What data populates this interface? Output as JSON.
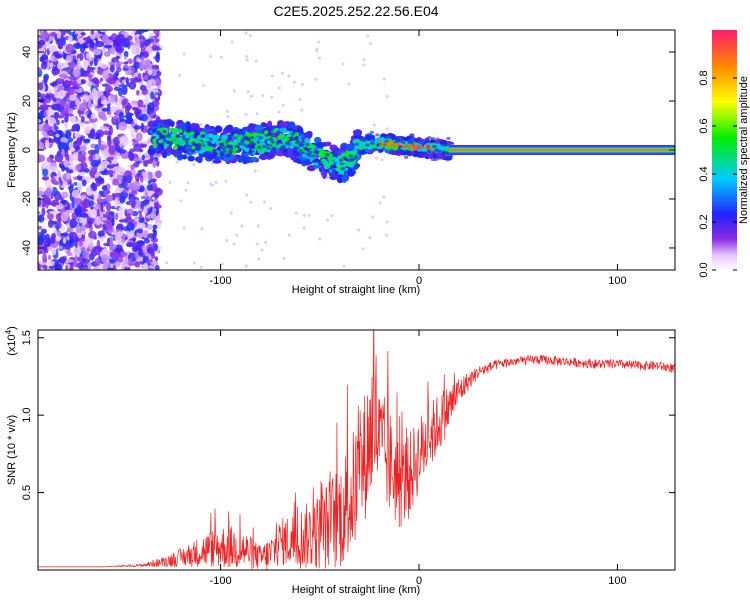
{
  "figure_title": "C2E5.2025.252.22.56.E04",
  "chart_data": [
    {
      "type": "heatmap",
      "title": "C2E5.2025.252.22.56.E04",
      "xlabel": "Height of straight line (km)",
      "ylabel": "Frequency (Hz)",
      "xlim": [
        -192,
        129
      ],
      "ylim": [
        -49,
        49
      ],
      "xticks": [
        -100,
        0,
        100
      ],
      "yticks": [
        40,
        20,
        0,
        -20,
        -40
      ],
      "colorbar": {
        "label": "Normalized spectral amplitude",
        "range": [
          0,
          1
        ],
        "ticks": [
          "0.0",
          "0.2",
          "0.4",
          "0.6",
          "0.8"
        ],
        "tick_values": [
          0,
          0.2,
          0.4,
          0.6,
          0.8
        ]
      },
      "features": {
        "noise_region_x_range": [
          -192,
          -135
        ],
        "signal_track_points": [
          {
            "x": -135,
            "f": 6
          },
          {
            "x": -120,
            "f": 4
          },
          {
            "x": -100,
            "f": 2
          },
          {
            "x": -80,
            "f": 3
          },
          {
            "x": -70,
            "f": 5
          },
          {
            "x": -60,
            "f": 2
          },
          {
            "x": -50,
            "f": -3
          },
          {
            "x": -40,
            "f": -6
          },
          {
            "x": -35,
            "f": -4
          },
          {
            "x": -30,
            "f": 2
          },
          {
            "x": -20,
            "f": 3
          },
          {
            "x": -10,
            "f": 2
          },
          {
            "x": 0,
            "f": 1
          },
          {
            "x": 15,
            "f": 0
          },
          {
            "x": 129,
            "f": 0
          }
        ],
        "carrier_frequency": 0
      }
    },
    {
      "type": "line",
      "title": "",
      "xlabel": "Height of straight line (km)",
      "ylabel": "SNR (10 * v/v)",
      "scale_label": "(x10",
      "scale_exponent": "4",
      "scale_close": ")",
      "xlim": [
        -192,
        129
      ],
      "ylim": [
        0,
        1.55
      ],
      "xticks": [
        -100,
        0,
        100
      ],
      "yticks": [
        0.5,
        1.0,
        1.5
      ],
      "yticklabels": [
        "0.5",
        "1.0",
        "1.5"
      ],
      "color": "#ee2222",
      "series": [
        {
          "name": "SNR",
          "x": [
            -192,
            -160,
            -140,
            -130,
            -120,
            -110,
            -100,
            -90,
            -80,
            -75,
            -70,
            -60,
            -50,
            -45,
            -40,
            -35,
            -30,
            -25,
            -22,
            -20,
            -15,
            -10,
            -5,
            0,
            5,
            10,
            15,
            20,
            25,
            30,
            40,
            50,
            60,
            70,
            80,
            90,
            100,
            110,
            120,
            129
          ],
          "y": [
            0.02,
            0.02,
            0.03,
            0.05,
            0.08,
            0.12,
            0.15,
            0.14,
            0.08,
            0.1,
            0.18,
            0.2,
            0.25,
            0.3,
            0.35,
            0.45,
            0.6,
            0.85,
            1.0,
            0.8,
            0.7,
            0.55,
            0.6,
            0.75,
            0.85,
            0.95,
            1.05,
            1.15,
            1.22,
            1.28,
            1.33,
            1.35,
            1.36,
            1.35,
            1.34,
            1.33,
            1.33,
            1.32,
            1.32,
            1.3
          ],
          "noise_amplitude": [
            0,
            0,
            0.01,
            0.03,
            0.06,
            0.1,
            0.14,
            0.14,
            0.08,
            0.12,
            0.15,
            0.2,
            0.25,
            0.3,
            0.35,
            0.4,
            0.4,
            0.45,
            0.55,
            0.4,
            0.35,
            0.3,
            0.28,
            0.25,
            0.22,
            0.2,
            0.15,
            0.1,
            0.06,
            0.04,
            0.03,
            0.03,
            0.03,
            0.03,
            0.03,
            0.03,
            0.03,
            0.03,
            0.03,
            0.03
          ]
        }
      ]
    }
  ]
}
